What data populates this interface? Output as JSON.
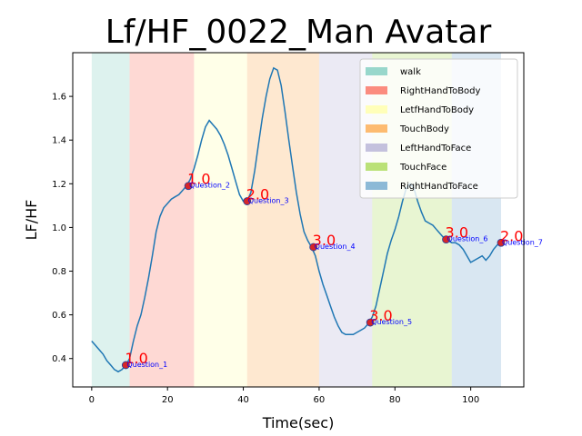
{
  "chart_data": {
    "type": "line",
    "title": "Lf/HF_0022_Man Avatar",
    "xlabel": "Time(sec)",
    "ylabel": "LF/HF",
    "xlim": [
      -5,
      114
    ],
    "ylim": [
      0.27,
      1.8
    ],
    "x_ticks": [
      0,
      20,
      40,
      60,
      80,
      100
    ],
    "y_ticks": [
      0.4,
      0.6,
      0.8,
      1.0,
      1.2,
      1.4,
      1.6
    ],
    "x_tick_labels": [
      "0",
      "20",
      "40",
      "60",
      "80",
      "100"
    ],
    "y_tick_labels": [
      "0.4",
      "0.6",
      "0.8",
      "1.0",
      "1.2",
      "1.4",
      "1.6"
    ],
    "legend_position": "top-right",
    "segments": [
      {
        "name": "walk",
        "start": 0,
        "end": 10,
        "color": "#8dd3c7"
      },
      {
        "name": "RightHandToBody",
        "start": 10,
        "end": 27,
        "color": "#fb8072"
      },
      {
        "name": "LetfHandToBody",
        "start": 27,
        "end": 41,
        "color": "#ffffb3"
      },
      {
        "name": "TouchBody",
        "start": 41,
        "end": 60,
        "color": "#fdb462"
      },
      {
        "name": "LeftHandToFace",
        "start": 60,
        "end": 74,
        "color": "#bebada"
      },
      {
        "name": "TouchFace",
        "start": 74,
        "end": 95,
        "color": "#b3de69"
      },
      {
        "name": "RightHandToFace",
        "start": 95,
        "end": 108,
        "color": "#80b1d3"
      }
    ],
    "series": [
      {
        "color": "#1f77b4",
        "x": [
          0,
          1,
          2,
          3,
          4,
          5,
          6,
          7,
          8,
          9,
          10,
          11,
          12,
          13,
          14,
          15,
          16,
          17,
          18,
          19,
          20,
          21,
          22,
          23,
          24,
          25,
          26,
          27,
          28,
          29,
          30,
          31,
          32,
          33,
          34,
          35,
          36,
          37,
          38,
          39,
          40,
          41,
          42,
          43,
          44,
          45,
          46,
          47,
          48,
          49,
          50,
          51,
          52,
          53,
          54,
          55,
          56,
          57,
          58,
          59,
          60,
          61,
          62,
          63,
          64,
          65,
          66,
          67,
          68,
          69,
          70,
          71,
          72,
          73,
          74,
          75,
          76,
          77,
          78,
          79,
          80,
          81,
          82,
          83,
          84,
          85,
          86,
          87,
          88,
          89,
          90,
          91,
          92,
          93,
          94,
          95,
          96,
          97,
          98,
          99,
          100,
          101,
          102,
          103,
          104,
          105,
          106,
          107,
          108
        ],
        "y": [
          0.48,
          0.46,
          0.44,
          0.42,
          0.39,
          0.37,
          0.35,
          0.34,
          0.35,
          0.37,
          0.4,
          0.48,
          0.55,
          0.6,
          0.68,
          0.77,
          0.87,
          0.98,
          1.05,
          1.09,
          1.11,
          1.13,
          1.14,
          1.15,
          1.17,
          1.19,
          1.22,
          1.27,
          1.33,
          1.4,
          1.46,
          1.49,
          1.47,
          1.45,
          1.42,
          1.38,
          1.33,
          1.27,
          1.21,
          1.15,
          1.12,
          1.12,
          1.16,
          1.26,
          1.38,
          1.5,
          1.6,
          1.68,
          1.73,
          1.72,
          1.65,
          1.53,
          1.4,
          1.28,
          1.16,
          1.06,
          0.98,
          0.94,
          0.91,
          0.87,
          0.8,
          0.74,
          0.69,
          0.64,
          0.59,
          0.55,
          0.52,
          0.51,
          0.51,
          0.51,
          0.52,
          0.53,
          0.54,
          0.56,
          0.59,
          0.64,
          0.72,
          0.8,
          0.88,
          0.94,
          0.99,
          1.05,
          1.12,
          1.18,
          1.2,
          1.18,
          1.12,
          1.07,
          1.03,
          1.02,
          1.01,
          0.99,
          0.97,
          0.95,
          0.94,
          0.93,
          0.93,
          0.92,
          0.9,
          0.87,
          0.84,
          0.85,
          0.86,
          0.87,
          0.85,
          0.87,
          0.9,
          0.92,
          0.93
        ]
      }
    ],
    "questions": [
      {
        "label": "Question_1",
        "score": "1.0",
        "x": 9,
        "y": 0.37
      },
      {
        "label": "Question_2",
        "score": "1.0",
        "x": 25.5,
        "y": 1.19
      },
      {
        "label": "Question_3",
        "score": "2.0",
        "x": 41,
        "y": 1.12
      },
      {
        "label": "Question_4",
        "score": "3.0",
        "x": 58.5,
        "y": 0.91
      },
      {
        "label": "Question_5",
        "score": "3.0",
        "x": 73.5,
        "y": 0.565
      },
      {
        "label": "Question_6",
        "score": "3.0",
        "x": 93.5,
        "y": 0.945
      },
      {
        "label": "Question_7",
        "score": "2.0",
        "x": 108,
        "y": 0.93
      }
    ]
  }
}
